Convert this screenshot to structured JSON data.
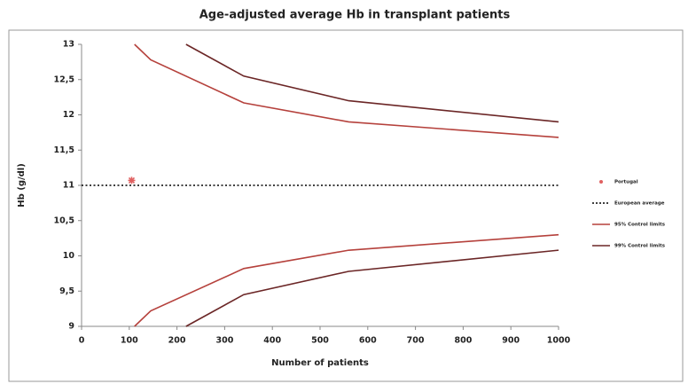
{
  "chart_data": {
    "type": "line",
    "title": "Age-adjusted average Hb in transplant patients",
    "x_label": "Number of patients",
    "y_label": "Hb (g/dl)",
    "xlim": [
      0,
      1000
    ],
    "xticks": [
      0,
      100,
      200,
      300,
      400,
      500,
      600,
      700,
      800,
      900,
      1000
    ],
    "ylim": [
      9,
      13
    ],
    "yticks": [
      {
        "value": 9,
        "label": "9"
      },
      {
        "value": 9.5,
        "label": "9,5"
      },
      {
        "value": 10,
        "label": "10"
      },
      {
        "value": 10.5,
        "label": "10,5"
      },
      {
        "value": 11,
        "label": "11"
      },
      {
        "value": 11.5,
        "label": "11,5"
      },
      {
        "value": 12,
        "label": "12"
      },
      {
        "value": 12.5,
        "label": "12,5"
      },
      13
    ],
    "legend": "right",
    "series": [
      {
        "name": "Portugal",
        "kind": "scatter",
        "color": "#e06060",
        "x": [
          105
        ],
        "values": [
          11.07
        ]
      },
      {
        "name": "European average",
        "kind": "dotted",
        "color": "#000000",
        "x": [
          0,
          1000
        ],
        "values": [
          11,
          11
        ]
      },
      {
        "name": "95% Control limits",
        "kind": "band",
        "color": "#b5413c",
        "x": [
          111,
          145,
          340,
          560,
          1000
        ],
        "upper": [
          13,
          12.78,
          12.17,
          11.9,
          11.68
        ],
        "lower": [
          9,
          9.22,
          9.82,
          10.08,
          10.3
        ]
      },
      {
        "name": "99% Control limits",
        "kind": "band",
        "color": "#6b2626",
        "x": [
          219,
          340,
          560,
          1000
        ],
        "upper": [
          13,
          12.55,
          12.2,
          11.9
        ],
        "lower": [
          9,
          9.45,
          9.78,
          10.08
        ]
      }
    ]
  }
}
